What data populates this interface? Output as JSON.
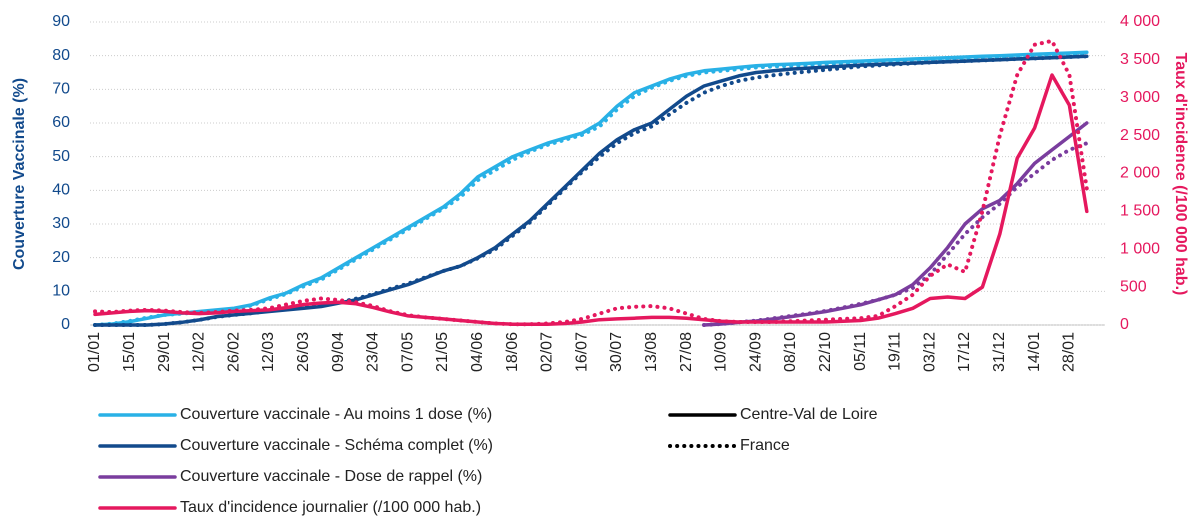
{
  "chart_data": {
    "type": "line",
    "ylabel": "Couverture Vaccinale (%)",
    "y2label": "Taux d'incidence (/100 000 hab.)",
    "categories": [
      "01/01",
      null,
      "15/01",
      null,
      "29/01",
      null,
      "12/02",
      null,
      "26/02",
      null,
      "12/03",
      null,
      "26/03",
      null,
      "09/04",
      null,
      "23/04",
      null,
      "07/05",
      null,
      "21/05",
      null,
      "04/06",
      null,
      "18/06",
      null,
      "02/07",
      null,
      "16/07",
      null,
      "30/07",
      null,
      "13/08",
      null,
      "27/08",
      null,
      "10/09",
      null,
      "24/09",
      null,
      "08/10",
      null,
      "22/10",
      null,
      "05/11",
      null,
      "19/11",
      null,
      "03/12",
      null,
      "17/12",
      null,
      "31/12",
      null,
      "14/01",
      null,
      "28/01",
      null
    ],
    "ylim": [
      0,
      90
    ],
    "yticks": [
      0,
      10,
      20,
      30,
      40,
      50,
      60,
      70,
      80,
      90
    ],
    "y2lim": [
      0,
      4000
    ],
    "y2ticks": [
      0,
      500,
      {
        "value": 1000,
        "label": "1 000"
      },
      {
        "value": 1500,
        "label": "1 500"
      },
      {
        "value": 2000,
        "label": "2 000"
      },
      {
        "value": 2500,
        "label": "2 500"
      },
      {
        "value": 3000,
        "label": "3 000"
      },
      {
        "value": 3500,
        "label": "3 500"
      },
      {
        "value": 4000,
        "label": "4 000"
      }
    ],
    "grid": true,
    "line_styles": [
      {
        "name": "Centre-Val de Loire",
        "style": "solid"
      },
      {
        "name": "France",
        "style": "dotted"
      }
    ],
    "series": [
      {
        "name": "Couverture vaccinale - Au moins 1 dose (%)",
        "color": "#29b1e6",
        "axis": "y",
        "lines": [
          [
            0,
            0.3,
            1,
            2,
            3,
            3.5,
            4,
            4.5,
            5,
            6,
            8,
            9.5,
            12,
            14,
            17,
            20,
            23,
            26,
            29,
            32,
            35,
            39,
            44,
            47,
            50,
            52,
            54,
            55.5,
            57,
            60,
            65,
            69,
            71,
            73,
            74.5,
            75.5,
            76,
            76.5,
            77,
            77.3,
            77.5,
            77.7,
            78,
            78.2,
            78.4,
            78.6,
            78.8,
            79,
            79.2,
            79.4,
            79.6,
            79.8,
            80,
            80.2,
            80.4,
            80.6,
            80.8,
            81
          ],
          [
            0,
            0.4,
            1.2,
            2.2,
            3,
            3.4,
            3.8,
            4.3,
            4.8,
            5.8,
            7.6,
            9.2,
            11.5,
            13.5,
            16.5,
            19.5,
            22.5,
            25.5,
            28.5,
            31.5,
            34.5,
            38,
            43,
            46,
            49,
            51.5,
            53.5,
            55,
            56.5,
            59,
            64,
            68,
            70.5,
            72.5,
            74,
            75,
            75.5,
            76,
            76.5,
            76.8,
            77,
            77.2,
            77.5,
            77.7,
            77.9,
            78.1,
            78.3,
            78.5,
            78.7,
            78.9,
            79.1,
            79.3,
            79.5,
            79.7,
            79.9,
            80.1,
            80.3,
            80.5
          ]
        ]
      },
      {
        "name": "Couverture vaccinale - Schéma complet (%)",
        "color": "#124a8c",
        "axis": "y",
        "lines": [
          [
            0,
            0,
            0,
            0,
            0.3,
            0.8,
            1.5,
            2.5,
            3,
            3.5,
            4,
            4.5,
            5,
            5.5,
            6.5,
            7.5,
            9,
            10.5,
            12,
            14,
            16,
            17.5,
            20,
            23,
            27,
            31,
            36,
            41,
            46,
            51,
            55,
            58,
            60,
            64,
            68,
            71,
            72.5,
            74,
            75,
            75.5,
            76,
            76.3,
            76.6,
            76.9,
            77.2,
            77.4,
            77.6,
            77.8,
            78,
            78.2,
            78.4,
            78.6,
            78.8,
            79,
            79.2,
            79.4,
            79.6,
            79.8
          ],
          [
            0,
            0,
            0,
            0,
            0.3,
            0.8,
            1.5,
            2.4,
            3,
            3.5,
            4.2,
            4.8,
            5.3,
            5.8,
            6.7,
            7.8,
            9.2,
            10.8,
            12.3,
            14.2,
            16,
            17.5,
            19.8,
            22.5,
            26.5,
            30.5,
            35.5,
            40.5,
            45.5,
            50,
            54,
            57,
            59,
            62.5,
            66,
            69,
            71,
            72.5,
            73.5,
            74.2,
            74.8,
            75.3,
            75.8,
            76.3,
            76.8,
            77.1,
            77.4,
            77.7,
            78,
            78.2,
            78.4,
            78.6,
            78.8,
            79,
            79.2,
            79.4,
            79.6,
            79.8
          ]
        ]
      },
      {
        "name": "Couverture vaccinale - Dose de rappel (%)",
        "color": "#7a3d9e",
        "axis": "y",
        "lines": [
          [
            null,
            null,
            null,
            null,
            null,
            null,
            null,
            null,
            null,
            null,
            null,
            null,
            null,
            null,
            null,
            null,
            null,
            null,
            null,
            null,
            null,
            null,
            null,
            null,
            null,
            null,
            null,
            null,
            null,
            null,
            null,
            null,
            null,
            null,
            null,
            0,
            0.3,
            0.8,
            1.2,
            1.8,
            2.5,
            3.2,
            4,
            5,
            6,
            7.5,
            9,
            12,
            17,
            23,
            30,
            34.5,
            37,
            42,
            48,
            52,
            56,
            60
          ],
          [
            null,
            null,
            null,
            null,
            null,
            null,
            null,
            null,
            null,
            null,
            null,
            null,
            null,
            null,
            null,
            null,
            null,
            null,
            null,
            null,
            null,
            null,
            null,
            null,
            null,
            null,
            null,
            null,
            null,
            null,
            null,
            null,
            null,
            null,
            null,
            0,
            0.3,
            0.8,
            1.3,
            2,
            2.7,
            3.4,
            4.2,
            5.2,
            6.3,
            7.5,
            9,
            11,
            15,
            21,
            27,
            32,
            36,
            41,
            45,
            49,
            52,
            54
          ]
        ]
      },
      {
        "name": "Taux d'incidence journalier (/100 000 hab.)",
        "color": "#e5185e",
        "axis": "y2",
        "lines": [
          [
            140,
            160,
            180,
            190,
            180,
            160,
            150,
            160,
            180,
            190,
            200,
            230,
            270,
            290,
            300,
            280,
            230,
            170,
            120,
            100,
            80,
            60,
            40,
            20,
            10,
            10,
            10,
            20,
            40,
            70,
            80,
            90,
            100,
            100,
            90,
            70,
            50,
            40,
            40,
            40,
            40,
            40,
            40,
            50,
            60,
            90,
            150,
            220,
            350,
            370,
            350,
            500,
            1200,
            2200,
            2600,
            3300,
            2900,
            1500
          ],
          [
            180,
            170,
            190,
            200,
            190,
            170,
            160,
            170,
            190,
            200,
            220,
            270,
            320,
            350,
            330,
            300,
            250,
            180,
            130,
            100,
            80,
            60,
            40,
            20,
            10,
            10,
            20,
            40,
            80,
            150,
            220,
            240,
            250,
            220,
            150,
            80,
            50,
            40,
            40,
            40,
            50,
            60,
            70,
            80,
            90,
            120,
            250,
            400,
            650,
            800,
            700,
            1500,
            2500,
            3300,
            3700,
            3750,
            3300,
            1800
          ]
        ]
      }
    ]
  }
}
